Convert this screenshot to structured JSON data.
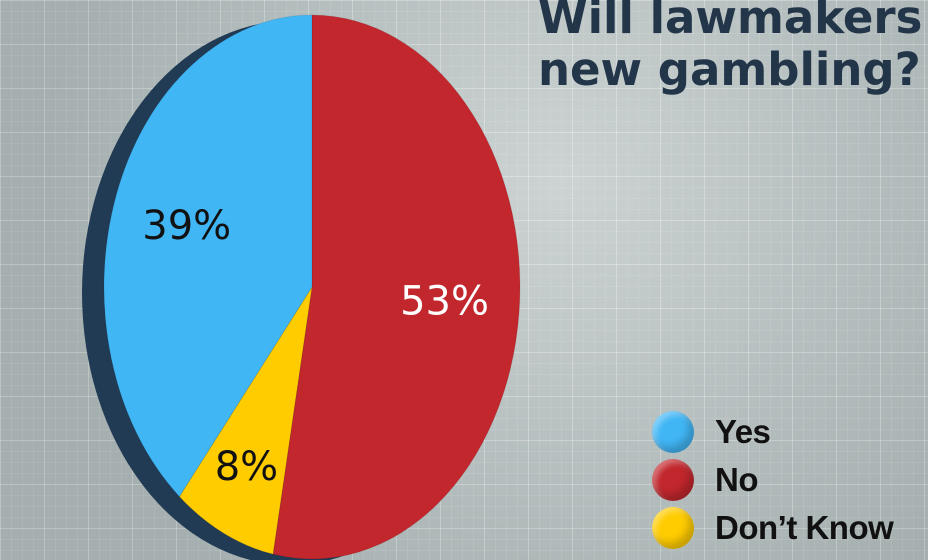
{
  "chart_data": {
    "type": "pie",
    "title_lines": [
      "Will lawmakers a",
      "new gambling?"
    ],
    "slices": [
      {
        "name": "No",
        "value": 53,
        "label": "53%",
        "color": "#c1272d",
        "label_color": "#ffffff"
      },
      {
        "name": "Don’t Know",
        "value": 8,
        "label": "8%",
        "color": "#ffcc00",
        "label_color": "#111111"
      },
      {
        "name": "Yes",
        "value": 39,
        "label": "39%",
        "color": "#41b6f5",
        "label_color": "#111111"
      }
    ],
    "legend": {
      "placement": "bottom-right",
      "items": [
        {
          "name": "Yes",
          "color": "#41b6f5"
        },
        {
          "name": "No",
          "color": "#c1272d"
        },
        {
          "name": "Don’t Know",
          "color": "#ffcc00"
        }
      ]
    },
    "shadow_color": "#213b55"
  }
}
